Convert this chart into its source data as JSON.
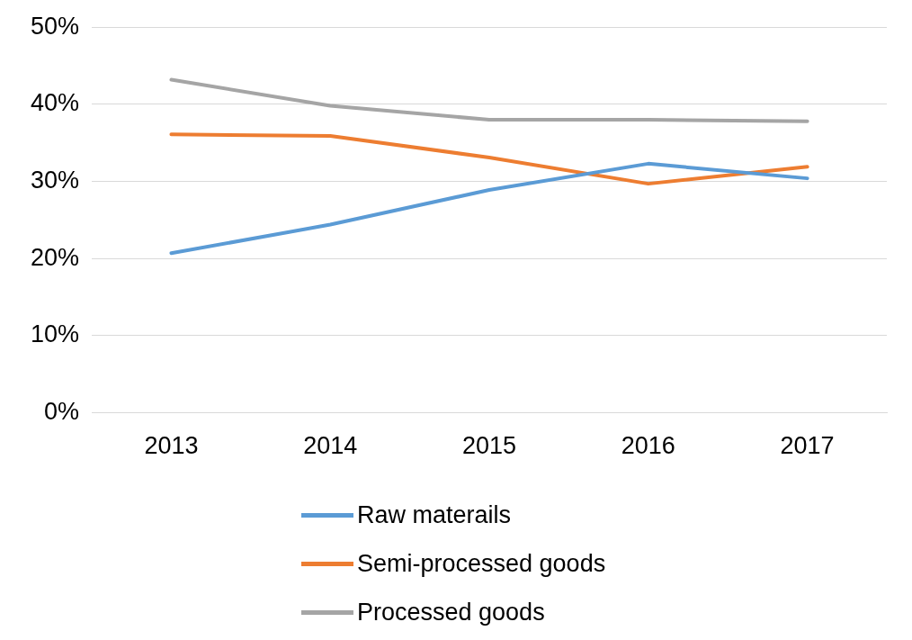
{
  "chart_data": {
    "type": "line",
    "categories": [
      "2013",
      "2014",
      "2015",
      "2016",
      "2017"
    ],
    "series": [
      {
        "name": "Raw materails",
        "color": "#5b9bd5",
        "values": [
          20.7,
          24.4,
          28.9,
          32.3,
          30.4
        ]
      },
      {
        "name": "Semi-processed goods",
        "color": "#ed7d31",
        "values": [
          36.1,
          35.9,
          33.1,
          29.7,
          31.9
        ]
      },
      {
        "name": "Processed goods",
        "color": "#a5a5a5",
        "values": [
          43.2,
          39.8,
          38.0,
          38.0,
          37.8
        ]
      }
    ],
    "ylim": [
      0,
      50
    ],
    "yticks": [
      {
        "value": 0,
        "label": "0%"
      },
      {
        "value": 10,
        "label": "10%"
      },
      {
        "value": 20,
        "label": "20%"
      },
      {
        "value": 30,
        "label": "30%"
      },
      {
        "value": 40,
        "label": "40%"
      },
      {
        "value": 50,
        "label": "50%"
      }
    ],
    "grid": "y",
    "legend": "bottom",
    "marker": "none",
    "line_style": "solid"
  }
}
